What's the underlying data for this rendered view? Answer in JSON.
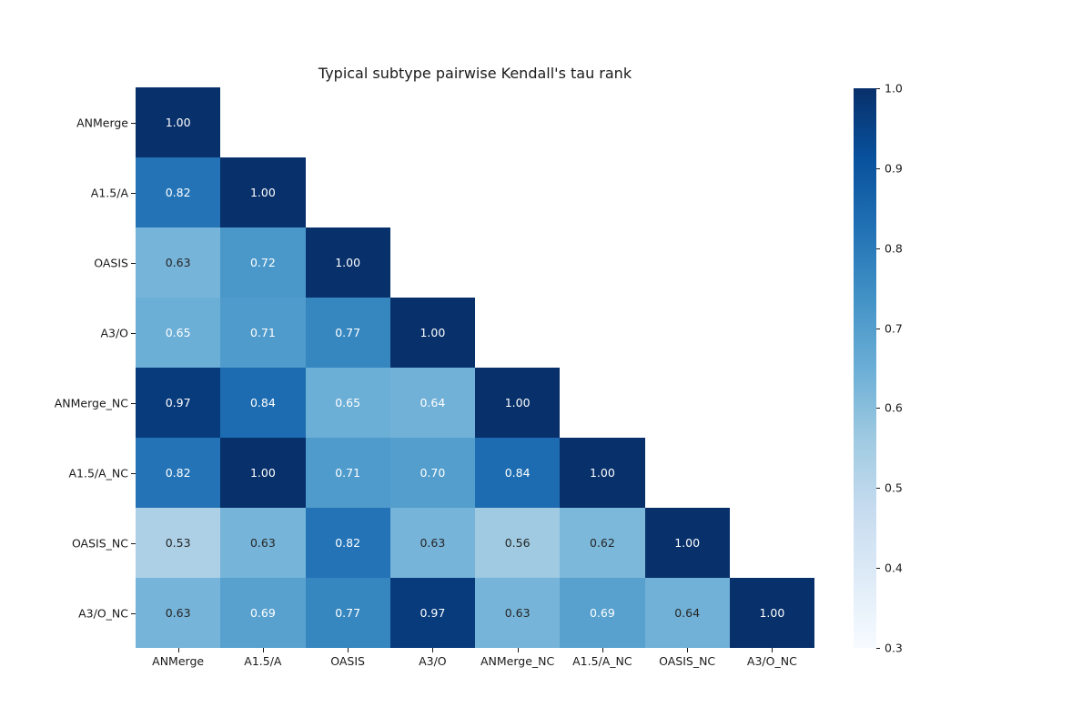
{
  "chart_data": {
    "type": "heatmap",
    "title": "Typical subtype pairwise Kendall's tau rank",
    "labels": [
      "ANMerge",
      "A1.5/A",
      "OASIS",
      "A3/O",
      "ANMerge_NC",
      "A1.5/A_NC",
      "OASIS_NC",
      "A3/O_NC"
    ],
    "xlabel": "",
    "ylabel": "",
    "shape": "lower-triangle",
    "matrix": [
      [
        1.0
      ],
      [
        0.82,
        1.0
      ],
      [
        0.63,
        0.72,
        1.0
      ],
      [
        0.65,
        0.71,
        0.77,
        1.0
      ],
      [
        0.97,
        0.84,
        0.65,
        0.64,
        1.0
      ],
      [
        0.82,
        1.0,
        0.71,
        0.7,
        0.84,
        1.0
      ],
      [
        0.53,
        0.63,
        0.82,
        0.63,
        0.56,
        0.62,
        1.0
      ],
      [
        0.63,
        0.69,
        0.77,
        0.97,
        0.63,
        0.69,
        0.64,
        1.0
      ]
    ],
    "annotation_decimals": 2,
    "text_colors": [
      [
        "w"
      ],
      [
        "w",
        "w"
      ],
      [
        "k",
        "w",
        "w"
      ],
      [
        "w",
        "w",
        "w",
        "w"
      ],
      [
        "w",
        "w",
        "w",
        "w",
        "w"
      ],
      [
        "w",
        "w",
        "w",
        "w",
        "w",
        "w"
      ],
      [
        "k",
        "k",
        "w",
        "k",
        "k",
        "k",
        "w"
      ],
      [
        "k",
        "w",
        "w",
        "w",
        "k",
        "w",
        "k",
        "w"
      ]
    ],
    "annotation_text_light": "#ffffff",
    "annotation_text_dark": "#262626",
    "colormap_name": "Blues",
    "colormap_stops": [
      "#f7fbff",
      "#deebf7",
      "#c6dbef",
      "#9ecae1",
      "#6baed6",
      "#4292c6",
      "#2171b5",
      "#08519c",
      "#08306b"
    ],
    "vmin": 0.3,
    "vmax": 1.0,
    "colorbar_ticks": [
      "1.0",
      "0.9",
      "0.8",
      "0.7",
      "0.6",
      "0.5",
      "0.4",
      "0.3"
    ],
    "legend_position": "right colorbar",
    "grid": false
  }
}
